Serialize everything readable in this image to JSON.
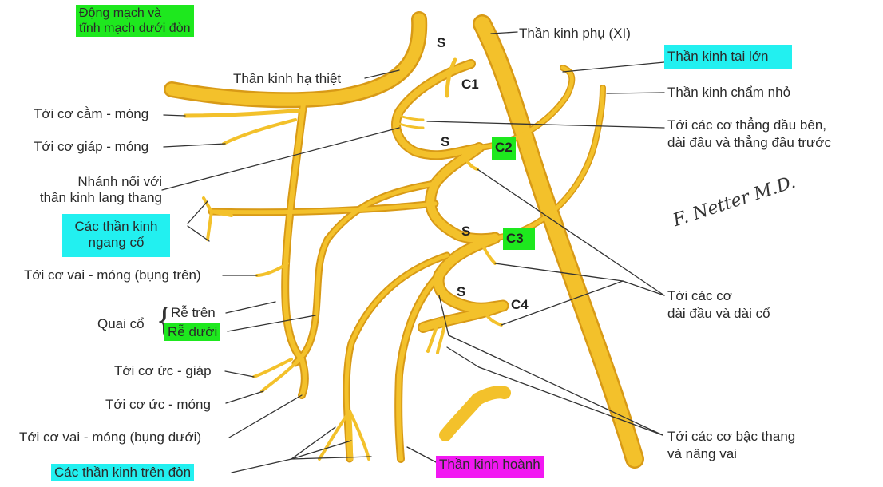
{
  "labels": {
    "subclavian": "Động mạch và\ntĩnh mạch dưới đòn",
    "hypoglossal": "Thần kinh hạ thiệt",
    "geniohyoid": "Tới cơ cằm - móng",
    "thyrohyoid": "Tới cơ giáp - móng",
    "vagus_branch": "Nhánh nối với\nthần kinh lang thang",
    "transverse_cervical": "Các thần kinh\nngang cổ",
    "omohyoid_superior": "Tới cơ vai - móng (bụng trên)",
    "ansa": "Quai cổ",
    "superior_root": "Rễ trên",
    "inferior_root": "Rễ dưới",
    "sternothyroid": "Tới cơ ức - giáp",
    "sternohyoid": "Tới cơ ức - móng",
    "omohyoid_inferior": "Tới cơ vai - móng (bụng dưới)",
    "supraclavicular": "Các thần kinh trên đòn",
    "phrenic": "Thần kinh hoành",
    "accessory": "Thần kinh phụ (XI)",
    "great_auricular": "Thần kinh tai lớn",
    "lesser_occipital": "Thần kinh chẩm nhỏ",
    "rectus_muscles": "Tới các cơ thẳng đầu bên,\ndài đầu và thẳng đầu trước",
    "longus_muscles": "Tới các cơ\ndài đầu và dài cổ",
    "scalene_muscles": "Tới các cơ bậc thang\nvà nâng vai"
  },
  "segments": {
    "s1": "S",
    "c1": "C1",
    "s2": "S",
    "c2": "C2",
    "s3": "S",
    "c3": "C3",
    "s4": "S",
    "c4": "C4"
  },
  "signature": "F. Netter M.D.",
  "colors": {
    "nerve": "#f3c12b",
    "nerve_dark": "#d89a16",
    "leader": "#333333",
    "highlight_green": "#1ee81e",
    "highlight_cyan": "#22f0f0",
    "highlight_magenta": "#f218f2"
  }
}
